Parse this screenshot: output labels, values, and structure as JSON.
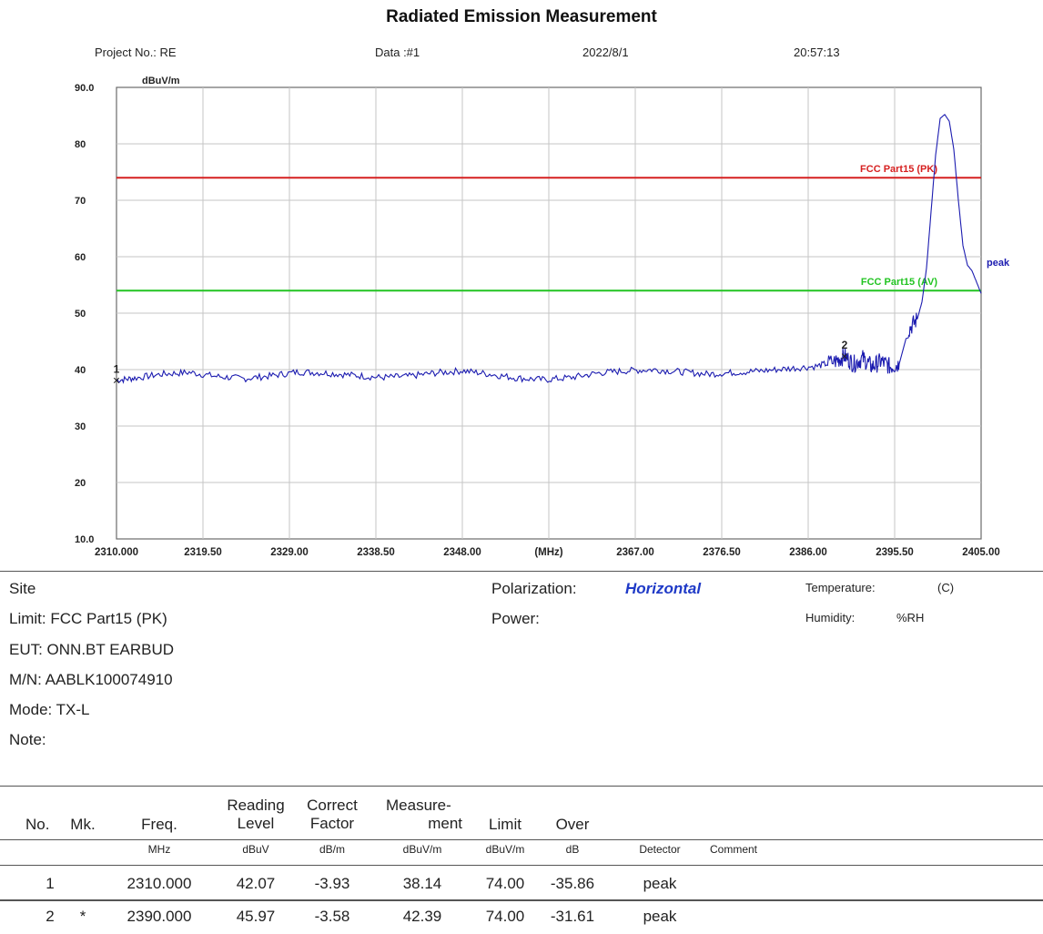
{
  "header": {
    "title": "Radiated Emission Measurement",
    "project": "Project No.: RE",
    "data_no": "Data :#1",
    "date": "2022/8/1",
    "time": "20:57:13"
  },
  "chart_data": {
    "type": "line",
    "ylabel": "dBuV/m",
    "xlabel": "(MHz)",
    "ylim": [
      10,
      90
    ],
    "xlim": [
      2310,
      2405
    ],
    "y_ticks": [
      "10.0",
      "20",
      "30",
      "40",
      "50",
      "60",
      "70",
      "80",
      "90.0"
    ],
    "x_ticks": [
      "2310.000",
      "2319.50",
      "2329.00",
      "2338.50",
      "2348.00",
      "(MHz)",
      "2367.00",
      "2376.50",
      "2386.00",
      "2395.50",
      "2405.00"
    ],
    "grid": true,
    "limits": [
      {
        "name": "FCC Part15 (PK)",
        "value": 74,
        "color": "#d62020"
      },
      {
        "name": "FCC Part15 (AV)",
        "value": 54,
        "color": "#22c422"
      }
    ],
    "series": [
      {
        "name": "peak",
        "color": "#1c1cb0",
        "x": [
          2310,
          2312,
          2315,
          2318,
          2321,
          2324,
          2327,
          2330,
          2333,
          2336,
          2339,
          2342,
          2345,
          2348,
          2351,
          2354,
          2357,
          2360,
          2363,
          2366,
          2369,
          2372,
          2375,
          2378,
          2381,
          2384,
          2387,
          2389,
          2390,
          2391,
          2392,
          2393,
          2394,
          2395,
          2396,
          2397,
          2398,
          2398.5,
          2399,
          2399.5,
          2400,
          2400.5,
          2401,
          2401.5,
          2402,
          2402.5,
          2403,
          2403.5,
          2404,
          2404.5,
          2405
        ],
        "y": [
          38.1,
          38.5,
          39.2,
          39.5,
          38.8,
          38.4,
          38.9,
          39.6,
          39.4,
          39.0,
          38.6,
          38.8,
          39.4,
          39.8,
          39.2,
          38.5,
          38.2,
          38.6,
          39.4,
          39.8,
          40.0,
          39.6,
          39.2,
          39.5,
          39.8,
          40.2,
          40.6,
          41.5,
          42.4,
          41.0,
          42.0,
          40.5,
          41.5,
          40.5,
          41.0,
          47.0,
          49.0,
          52.0,
          58.0,
          68.0,
          78.0,
          84.5,
          85.2,
          84.0,
          79.0,
          70.0,
          62.0,
          58.5,
          57.5,
          55.5,
          53.5
        ]
      }
    ],
    "markers": [
      {
        "label": "1",
        "x": 2310.0,
        "y": 38.14
      },
      {
        "label": "2",
        "x": 2390.0,
        "y": 42.39
      }
    ],
    "series_label": "peak"
  },
  "info": {
    "site": "Site",
    "limit": "Limit: FCC Part15 (PK)",
    "eut": "EUT: ONN.BT EARBUD",
    "mn": "M/N: AABLK100074910",
    "mode": "Mode: TX-L",
    "note": "Note:",
    "polarization_label": "Polarization:",
    "polarization_value": "Horizontal",
    "power_label": "Power:",
    "temperature_label": "Temperature:",
    "temperature_unit": "(C)",
    "humidity_label": "Humidity:",
    "humidity_unit": "%RH"
  },
  "table": {
    "headers": [
      "No.",
      "Mk.",
      "Freq.",
      "Reading Level",
      "Correct Factor",
      "Measure- ment",
      "Limit",
      "Over",
      "",
      ""
    ],
    "header_lines": {
      "reading": [
        "Reading",
        "Level"
      ],
      "correct": [
        "Correct",
        "Factor"
      ],
      "measure": [
        "Measure-",
        "ment"
      ]
    },
    "units": [
      "",
      "",
      "MHz",
      "dBuV",
      "dB/m",
      "dBuV/m",
      "dBuV/m",
      "dB",
      "Detector",
      "Comment"
    ],
    "rows": [
      {
        "no": "1",
        "mk": "",
        "freq": "2310.000",
        "reading": "42.07",
        "correct": "-3.93",
        "measure": "38.14",
        "limit": "74.00",
        "over": "-35.86",
        "detector": "peak",
        "comment": ""
      },
      {
        "no": "2",
        "mk": "*",
        "freq": "2390.000",
        "reading": "45.97",
        "correct": "-3.58",
        "measure": "42.39",
        "limit": "74.00",
        "over": "-31.61",
        "detector": "peak",
        "comment": ""
      }
    ]
  }
}
